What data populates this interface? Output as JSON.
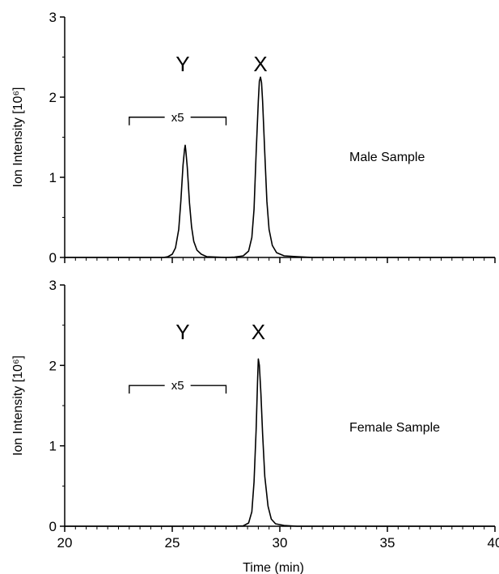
{
  "chart_data": [
    {
      "type": "line",
      "title": "",
      "xlabel": "",
      "ylabel": "Ion Intensity [10⁶]",
      "ylim": [
        0,
        3
      ],
      "xlim": [
        20,
        40
      ],
      "yticks": [
        "0",
        "1",
        "2",
        "3"
      ],
      "sample_label": "Male Sample",
      "peaks": [
        {
          "label": "Y",
          "x": 25.6,
          "height": 1.4,
          "scale_label": "x5",
          "scale_from": 23,
          "scale_to": 27.5,
          "scale_y": 1.75
        },
        {
          "label": "X",
          "x": 29.1,
          "height": 2.25
        }
      ],
      "series": [
        {
          "values": [
            [
              20,
              0
            ],
            [
              24.6,
              0
            ],
            [
              24.8,
              0.01
            ],
            [
              25.0,
              0.04
            ],
            [
              25.15,
              0.12
            ],
            [
              25.3,
              0.35
            ],
            [
              25.4,
              0.7
            ],
            [
              25.5,
              1.15
            ],
            [
              25.57,
              1.35
            ],
            [
              25.6,
              1.4
            ],
            [
              25.63,
              1.33
            ],
            [
              25.7,
              1.12
            ],
            [
              25.8,
              0.68
            ],
            [
              25.9,
              0.38
            ],
            [
              26.0,
              0.2
            ],
            [
              26.15,
              0.09
            ],
            [
              26.35,
              0.04
            ],
            [
              26.6,
              0.01
            ],
            [
              27.5,
              0
            ],
            [
              27.9,
              0.005
            ],
            [
              28.3,
              0.02
            ],
            [
              28.55,
              0.08
            ],
            [
              28.7,
              0.25
            ],
            [
              28.8,
              0.6
            ],
            [
              28.9,
              1.3
            ],
            [
              29.0,
              1.95
            ],
            [
              29.05,
              2.2
            ],
            [
              29.1,
              2.25
            ],
            [
              29.15,
              2.18
            ],
            [
              29.2,
              1.95
            ],
            [
              29.3,
              1.3
            ],
            [
              29.4,
              0.7
            ],
            [
              29.5,
              0.35
            ],
            [
              29.65,
              0.15
            ],
            [
              29.85,
              0.06
            ],
            [
              30.2,
              0.02
            ],
            [
              30.8,
              0.01
            ],
            [
              31.5,
              0
            ],
            [
              40,
              0
            ]
          ]
        }
      ]
    },
    {
      "type": "line",
      "title": "",
      "xlabel": "Time (min)",
      "ylabel": "Ion Intensity [10⁶]",
      "ylim": [
        0,
        3
      ],
      "xlim": [
        20,
        40
      ],
      "yticks": [
        "0",
        "1",
        "2",
        "3"
      ],
      "xticks": [
        "20",
        "25",
        "30",
        "35",
        "40"
      ],
      "sample_label": "Female Sample",
      "peaks": [
        {
          "label": "Y",
          "x": 25.6,
          "height": 0,
          "scale_label": "x5",
          "scale_from": 23,
          "scale_to": 27.5,
          "scale_y": 1.75
        },
        {
          "label": "X",
          "x": 29.0,
          "height": 2.08
        }
      ],
      "series": [
        {
          "values": [
            [
              20,
              0
            ],
            [
              27.8,
              0
            ],
            [
              28.3,
              0.005
            ],
            [
              28.55,
              0.04
            ],
            [
              28.7,
              0.18
            ],
            [
              28.8,
              0.55
            ],
            [
              28.9,
              1.2
            ],
            [
              28.97,
              1.85
            ],
            [
              29.0,
              2.08
            ],
            [
              29.05,
              2.0
            ],
            [
              29.12,
              1.65
            ],
            [
              29.2,
              1.15
            ],
            [
              29.3,
              0.62
            ],
            [
              29.45,
              0.25
            ],
            [
              29.6,
              0.09
            ],
            [
              29.8,
              0.03
            ],
            [
              30.2,
              0.01
            ],
            [
              30.8,
              0
            ],
            [
              40,
              0
            ]
          ]
        }
      ]
    }
  ]
}
